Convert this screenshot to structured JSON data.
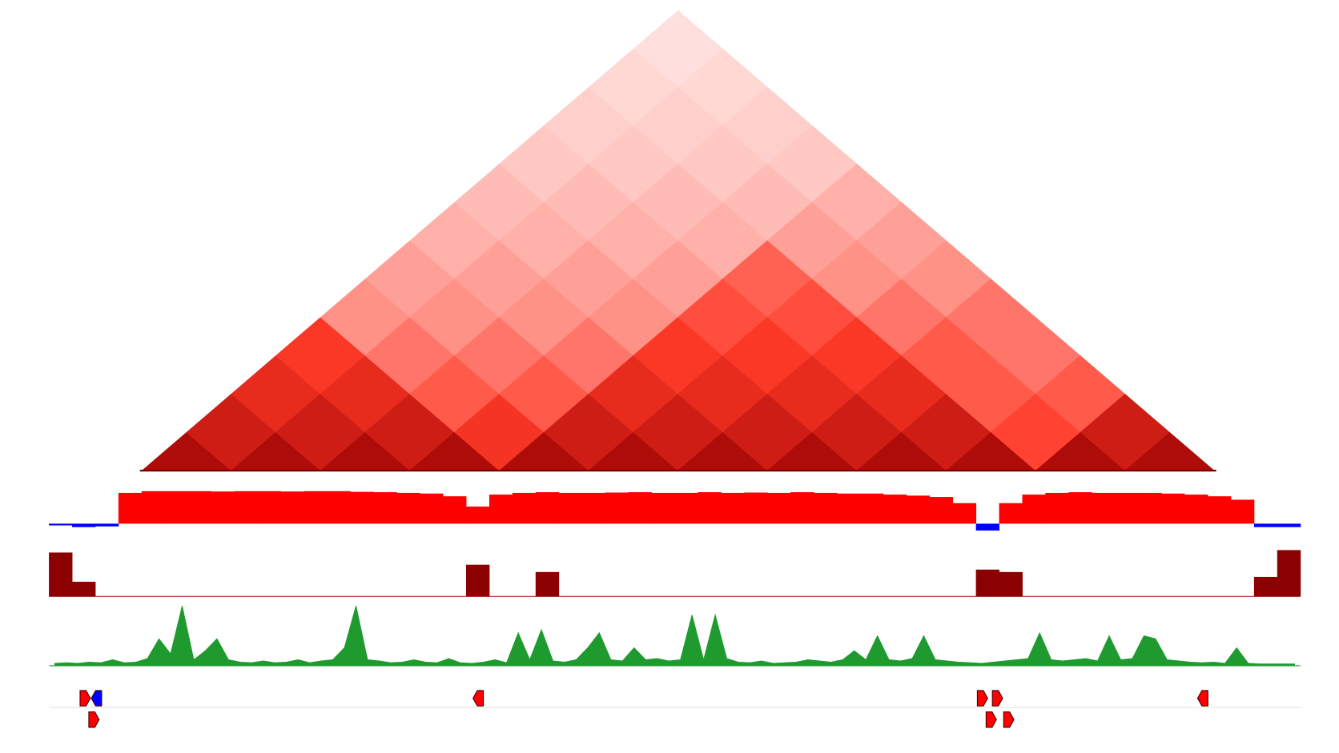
{
  "chart_data": [
    {
      "type": "heatmap",
      "vlim": [
        0,
        100
      ],
      "colors": [
        "#ffffff",
        "#ff3a28",
        "#9a0000"
      ],
      "matrix": [
        [
          90,
          75,
          62,
          52,
          28,
          24,
          20,
          17,
          14,
          12,
          10,
          8
        ],
        [
          90,
          75,
          62,
          35,
          28,
          24,
          20,
          17,
          14,
          12,
          10
        ],
        [
          90,
          75,
          42,
          35,
          28,
          24,
          20,
          17,
          14,
          12
        ],
        [
          90,
          55,
          42,
          35,
          28,
          24,
          20,
          17,
          14
        ],
        [
          90,
          75,
          62,
          52,
          45,
          40,
          24,
          20
        ],
        [
          90,
          75,
          62,
          52,
          45,
          28,
          24
        ],
        [
          90,
          75,
          62,
          52,
          35,
          28
        ],
        [
          90,
          75,
          62,
          42,
          35
        ],
        [
          90,
          75,
          42,
          35
        ],
        [
          90,
          48,
          42
        ],
        [
          90,
          75
        ],
        [
          90
        ]
      ]
    },
    {
      "type": "bar",
      "color": "#ff0000",
      "negative_color": "#0000ff",
      "ylim": [
        -1,
        1
      ],
      "values": [
        -0.05,
        -0.1,
        -0.08,
        0.9,
        0.95,
        0.95,
        0.95,
        0.94,
        0.95,
        0.95,
        0.94,
        0.95,
        0.95,
        0.93,
        0.92,
        0.9,
        0.88,
        0.8,
        0.5,
        0.85,
        0.9,
        0.92,
        0.9,
        0.9,
        0.91,
        0.92,
        0.9,
        0.9,
        0.92,
        0.9,
        0.91,
        0.9,
        0.92,
        0.9,
        0.88,
        0.88,
        0.85,
        0.82,
        0.78,
        0.6,
        -0.2,
        0.6,
        0.85,
        0.9,
        0.92,
        0.9,
        0.9,
        0.9,
        0.88,
        0.85,
        0.8,
        0.7,
        -0.1,
        -0.1
      ]
    },
    {
      "type": "bar",
      "color": "#8b0000",
      "ylim": [
        0,
        1
      ],
      "values": [
        0.9,
        0.3,
        0,
        0,
        0,
        0,
        0,
        0,
        0,
        0,
        0,
        0,
        0,
        0,
        0,
        0,
        0,
        0,
        0.65,
        0,
        0,
        0.5,
        0,
        0,
        0,
        0,
        0,
        0,
        0,
        0,
        0,
        0,
        0,
        0,
        0,
        0,
        0,
        0,
        0,
        0,
        0.55,
        0.5,
        0,
        0,
        0,
        0,
        0,
        0,
        0,
        0,
        0,
        0,
        0.4,
        0.95
      ]
    },
    {
      "type": "area",
      "color": "#1e9a2e",
      "ylim": [
        0,
        1
      ],
      "values": [
        0.04,
        0.05,
        0.04,
        0.06,
        0.05,
        0.1,
        0.05,
        0.06,
        0.12,
        0.45,
        0.2,
        1.0,
        0.1,
        0.25,
        0.45,
        0.1,
        0.06,
        0.05,
        0.08,
        0.05,
        0.06,
        0.1,
        0.05,
        0.08,
        0.1,
        0.3,
        1.0,
        0.1,
        0.08,
        0.05,
        0.06,
        0.1,
        0.06,
        0.05,
        0.12,
        0.05,
        0.04,
        0.06,
        0.1,
        0.05,
        0.55,
        0.1,
        0.6,
        0.08,
        0.06,
        0.1,
        0.3,
        0.55,
        0.1,
        0.08,
        0.3,
        0.1,
        0.12,
        0.08,
        0.1,
        0.85,
        0.1,
        0.85,
        0.12,
        0.06,
        0.05,
        0.08,
        0.04,
        0.05,
        0.06,
        0.1,
        0.08,
        0.06,
        0.1,
        0.25,
        0.1,
        0.5,
        0.1,
        0.08,
        0.12,
        0.5,
        0.1,
        0.08,
        0.06,
        0.05,
        0.04,
        0.06,
        0.08,
        0.1,
        0.12,
        0.55,
        0.1,
        0.08,
        0.1,
        0.12,
        0.08,
        0.5,
        0.1,
        0.12,
        0.5,
        0.45,
        0.1,
        0.08,
        0.06,
        0.05,
        0.06,
        0.04,
        0.3,
        0.04,
        0.03,
        0.03,
        0.03,
        0.03
      ]
    },
    {
      "type": "genes",
      "xlim": [
        0,
        100
      ],
      "features": [
        {
          "start": 2.9,
          "strand": "+",
          "row": 0,
          "color": "#ff0000"
        },
        {
          "start": 3.8,
          "strand": "-",
          "row": 0,
          "color": "#0000ff"
        },
        {
          "start": 34.3,
          "strand": "-",
          "row": 0,
          "color": "#ff0000"
        },
        {
          "start": 74.6,
          "strand": "+",
          "row": 0,
          "color": "#ff0000"
        },
        {
          "start": 75.8,
          "strand": "+",
          "row": 0,
          "color": "#ff0000"
        },
        {
          "start": 92.2,
          "strand": "-",
          "row": 0,
          "color": "#ff0000"
        },
        {
          "start": 3.6,
          "strand": "+",
          "row": 1,
          "color": "#ff0000"
        },
        {
          "start": 75.3,
          "strand": "+",
          "row": 1,
          "color": "#ff0000"
        },
        {
          "start": 76.7,
          "strand": "+",
          "row": 1,
          "color": "#ff0000"
        }
      ]
    }
  ]
}
